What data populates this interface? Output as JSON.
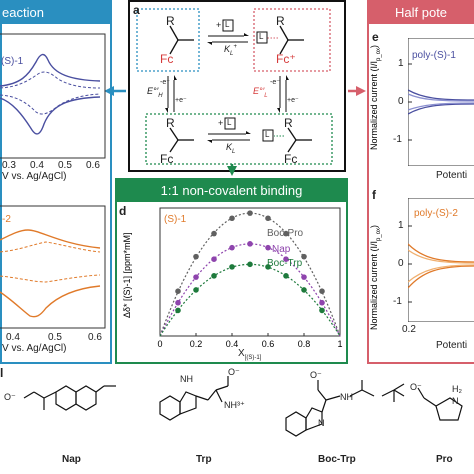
{
  "headers": {
    "left": "eaction",
    "right": "Half pote",
    "binding": "1:1 non-covalent binding"
  },
  "panel_a": {
    "letter": "a",
    "L": "L",
    "ks": [
      "K",
      "K"
    ],
    "k_sub_top": "L",
    "k_sup_top": "+",
    "k_sub_bot": "L",
    "r": [
      "R",
      "R",
      "R",
      "R"
    ],
    "fc": [
      "Fc",
      "Fc⁺",
      "Fc",
      "Fc"
    ],
    "e_left": "E°′",
    "e_left_sub": "H",
    "e_right": "E°′",
    "e_right_sub": "L",
    "elec": [
      "-e⁻",
      "+e⁻",
      "-e⁻",
      "+e⁻"
    ]
  },
  "left_top": {
    "label": "(S)-1",
    "xlabel": "V vs. Ag/AgCl)",
    "ticks": [
      "0.3",
      "0.4",
      "0.5",
      "0.6"
    ]
  },
  "left_bottom": {
    "label": "-2",
    "xlabel": "V vs. Ag/AgCl)",
    "ticks": [
      "0.4",
      "0.5",
      "0.6"
    ]
  },
  "panel_e": {
    "letter": "e",
    "series_label": "poly-(S)-1",
    "ylabel": "Normalized current (I/I",
    "ylabel_sub": "p_ox",
    "yticks": [
      "1",
      "0",
      "-1"
    ],
    "xlabel": "Potenti"
  },
  "panel_f": {
    "letter": "f",
    "series_label": "poly-(S)-2",
    "ylabel": "Normalized current (I/I",
    "ylabel_sub": "p_ox",
    "yticks": [
      "1",
      "0",
      "-1"
    ],
    "xtick": "0.2",
    "xlabel": "Potenti"
  },
  "panel_d": {
    "letter": "d",
    "series_tag": "(S)-1",
    "ylabel": "Δδ* [(S)-1] [ppm*mM]",
    "xlabel": "X",
    "xlabel_sub": "[(S)-1]",
    "xticks": [
      "0",
      "0.2",
      "0.4",
      "0.6",
      "0.8",
      "1"
    ],
    "legend": [
      {
        "name": "Boc-Pro",
        "color": "#606060"
      },
      {
        "name": "Nap",
        "color": "#8e44ad"
      },
      {
        "name": "Boc-Trp",
        "color": "#1e7a3c"
      }
    ]
  },
  "chart_data": {
    "type": "scatter",
    "xlabel": "X[(S)-1]",
    "ylabel": "Δδ* [(S)-1] [ppm*mM]",
    "xlim": [
      0,
      1
    ],
    "series": [
      {
        "name": "Boc-Pro",
        "color": "#606060",
        "x": [
          0.1,
          0.2,
          0.3,
          0.4,
          0.5,
          0.6,
          0.7,
          0.8,
          0.9
        ],
        "y": [
          0.35,
          0.62,
          0.8,
          0.92,
          0.96,
          0.92,
          0.8,
          0.62,
          0.35
        ]
      },
      {
        "name": "Nap",
        "color": "#8e44ad",
        "x": [
          0.1,
          0.2,
          0.3,
          0.4,
          0.5,
          0.6,
          0.7,
          0.8,
          0.9
        ],
        "y": [
          0.26,
          0.46,
          0.6,
          0.69,
          0.72,
          0.69,
          0.6,
          0.46,
          0.26
        ]
      },
      {
        "name": "Boc-Trp",
        "color": "#1e7a3c",
        "x": [
          0.1,
          0.2,
          0.3,
          0.4,
          0.5,
          0.6,
          0.7,
          0.8,
          0.9
        ],
        "y": [
          0.2,
          0.36,
          0.47,
          0.54,
          0.56,
          0.54,
          0.47,
          0.36,
          0.2
        ]
      }
    ]
  },
  "molecules": {
    "letter": "l",
    "names": [
      "Nap",
      "Trp",
      "Boc-Trp",
      "Pro"
    ],
    "trp_nh3": "NH³⁺",
    "pro_nh2": "H₂",
    "pro_n": "N",
    "nh": [
      "NH",
      "NH",
      "N"
    ],
    "o_minus": [
      "O⁻",
      "O⁻",
      "O⁻",
      "O⁻"
    ]
  },
  "colors": {
    "blue": "#2a8fc0",
    "green": "#1e8a4e",
    "red": "#d65f6b"
  }
}
